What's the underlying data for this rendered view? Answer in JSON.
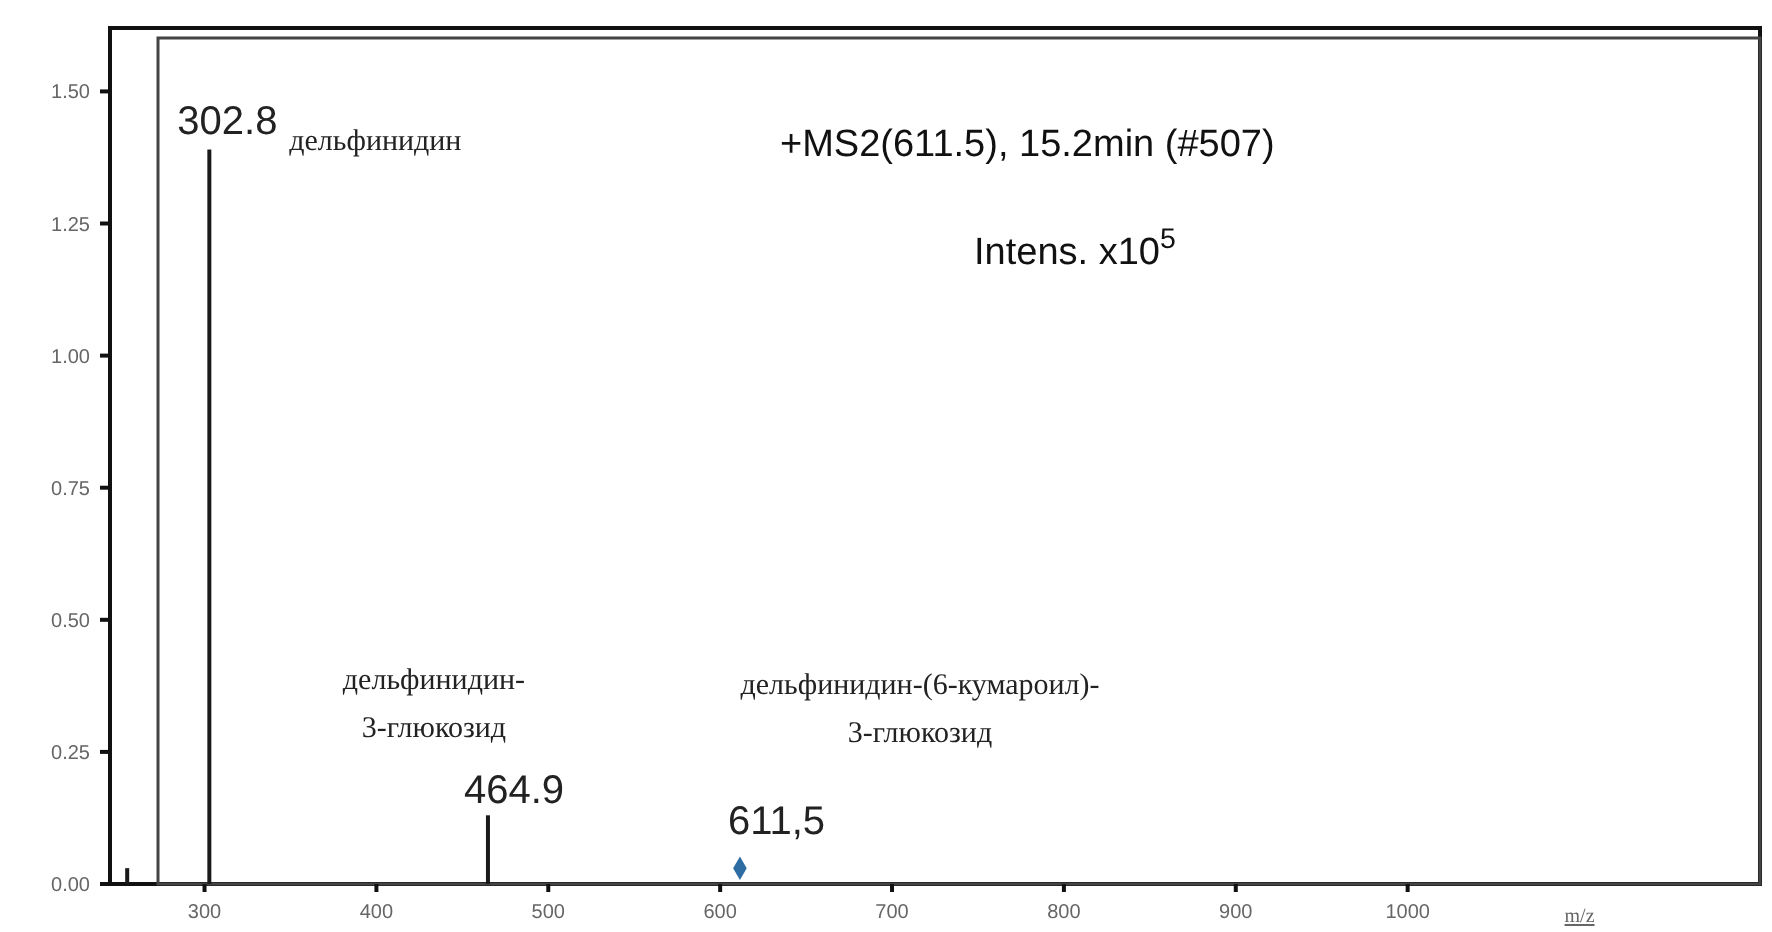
{
  "chart_data": {
    "type": "bar",
    "title": "+MS2(611.5), 15.2min (#507)",
    "ylabel": "Intens. x10$^{5}$",
    "xlabel": "m/z",
    "x": [
      255,
      302.8,
      464.9
    ],
    "values": [
      0.03,
      1.39,
      0.13
    ],
    "color": "#1a1a1a",
    "series": [
      {
        "type": "scatter",
        "x": [
          611.5
        ],
        "values": [
          0.03
        ],
        "color": "#2e6da4",
        "marker": "diamond"
      }
    ],
    "xlim": [
      245,
      1205
    ],
    "xticks": [
      300,
      400,
      500,
      600,
      700,
      800,
      900,
      1000
    ],
    "ylim": [
      0,
      1.62
    ],
    "yticks": [
      {
        "value": 0,
        "label": "0.00"
      },
      {
        "value": 0.25,
        "label": "0.25"
      },
      {
        "value": 0.5,
        "label": "0.50"
      },
      {
        "value": 0.75,
        "label": "0.75"
      },
      {
        "value": 1,
        "label": "1.00"
      },
      {
        "value": 1.25,
        "label": "1.25"
      },
      {
        "value": 1.5,
        "label": "1.50"
      }
    ],
    "grid": false,
    "annotations": [
      {
        "text": "302.8",
        "x": 302.8,
        "y": 1.39
      },
      {
        "text": "дельфинидин",
        "x": 302.8,
        "y": 1.39
      },
      {
        "text": "464.9",
        "x": 464.9,
        "y": 0.13
      },
      {
        "text": "дельфинидин-\n3-глюкозид",
        "x": 464.9,
        "y": 0.13
      },
      {
        "text": "611,5",
        "x": 611.5,
        "y": 0.03
      },
      "дельфинидин-(6-кумароил)-\n3-глюкозид"
    ]
  }
}
